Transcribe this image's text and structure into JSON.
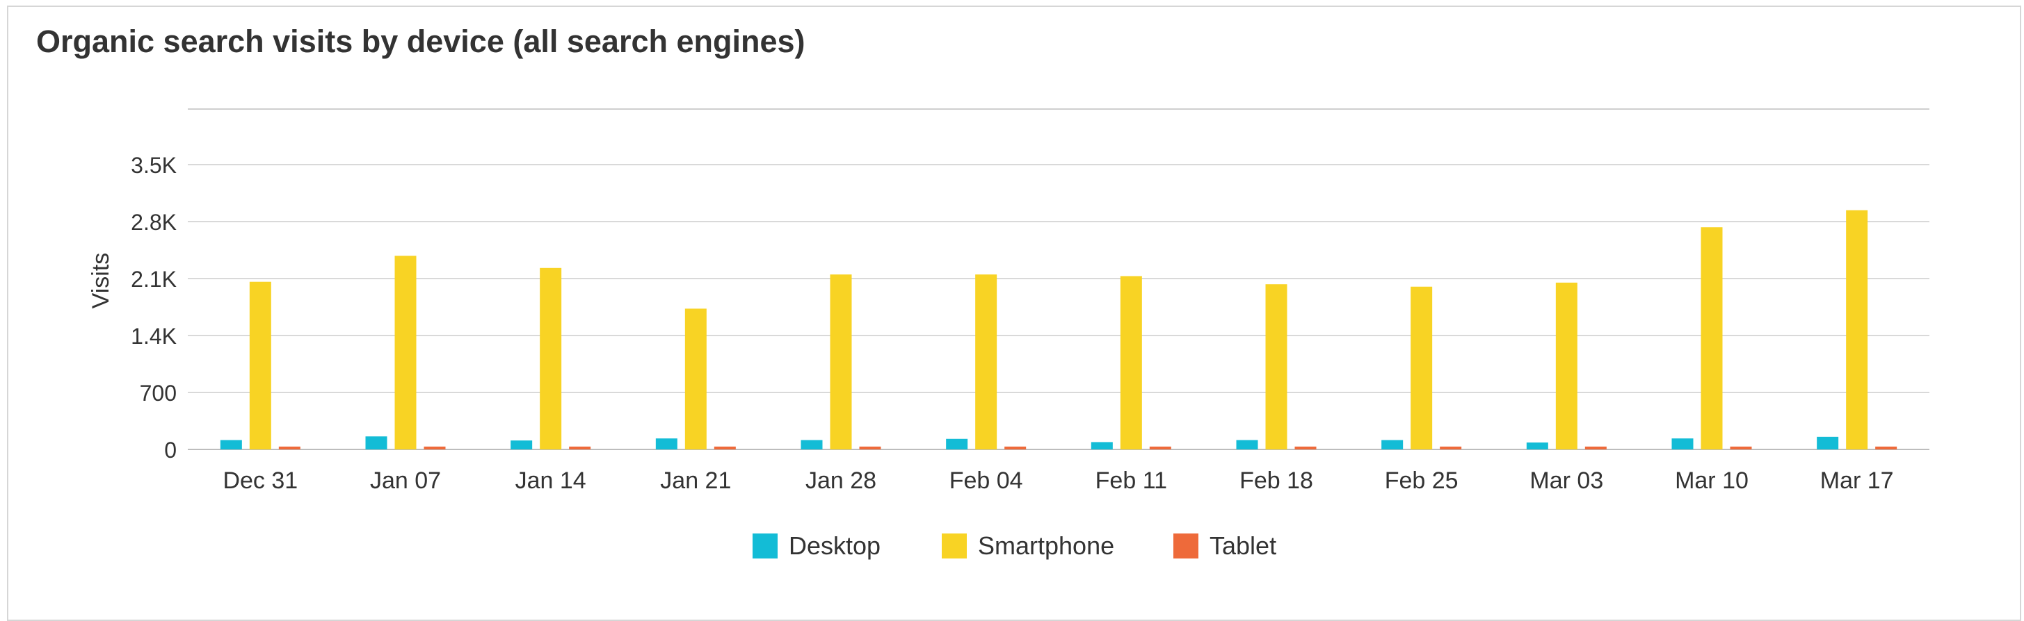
{
  "chart_data": {
    "type": "bar",
    "title": "Organic search visits by device (all search engines)",
    "xlabel": "",
    "ylabel": "Visits",
    "ylim": [
      0,
      4200
    ],
    "yticks": [
      {
        "value": 0,
        "label": "0"
      },
      {
        "value": 700,
        "label": "700"
      },
      {
        "value": 1400,
        "label": "1.4K"
      },
      {
        "value": 2100,
        "label": "2.1K"
      },
      {
        "value": 2800,
        "label": "2.8K"
      },
      {
        "value": 3500,
        "label": "3.5K"
      }
    ],
    "categories": [
      "Dec 31",
      "Jan 07",
      "Jan 14",
      "Jan 21",
      "Jan 28",
      "Feb 04",
      "Feb 11",
      "Feb 18",
      "Feb 25",
      "Mar 03",
      "Mar 10",
      "Mar 17"
    ],
    "series": [
      {
        "name": "Desktop",
        "color": "#13bcd6",
        "values": [
          115,
          160,
          110,
          135,
          115,
          130,
          90,
          115,
          115,
          85,
          135,
          155
        ]
      },
      {
        "name": "Smartphone",
        "color": "#f8d324",
        "values": [
          2060,
          2380,
          2230,
          1730,
          2150,
          2150,
          2130,
          2030,
          2000,
          2050,
          2730,
          2940
        ]
      },
      {
        "name": "Tablet",
        "color": "#ee6a3a",
        "values": [
          35,
          35,
          35,
          35,
          35,
          35,
          35,
          35,
          35,
          35,
          35,
          35
        ]
      }
    ],
    "grid": true,
    "legend_position": "bottom-center"
  }
}
